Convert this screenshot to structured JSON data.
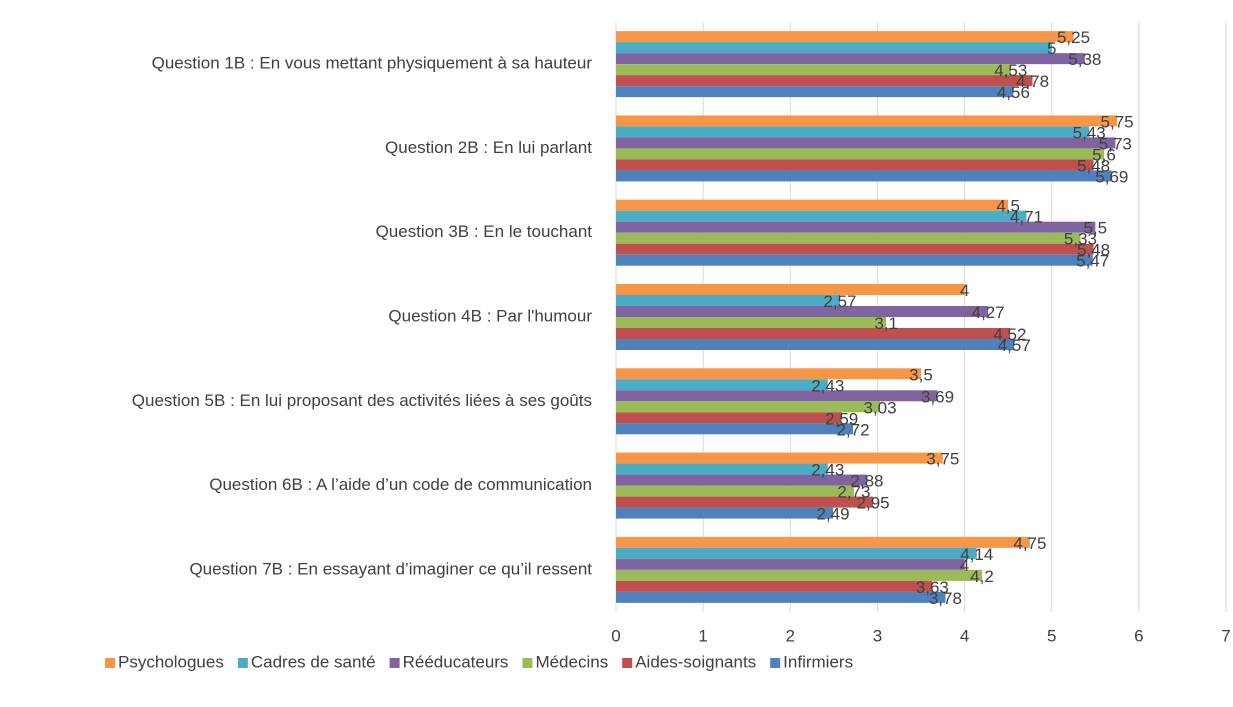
{
  "chart_data": {
    "type": "hbar",
    "categories": [
      "Question 1B : En vous mettant physiquement à sa hauteur",
      "Question 2B : En lui parlant",
      "Question 3B : En le touchant",
      "Question 4B : Par l'humour",
      "Question 5B : En lui proposant des activités liées à ses goûts",
      "Question 6B : A l’aide d’un code de communication",
      "Question 7B : En essayant d’imaginer ce qu’il ressent"
    ],
    "series": [
      {
        "name": "Psychologues",
        "color": "#f79646",
        "values": [
          5.25,
          5.75,
          4.5,
          4,
          3.5,
          3.75,
          4.75
        ],
        "value_labels": [
          "5,25",
          "5,75",
          "4,5",
          "4",
          "3,5",
          "3,75",
          "4,75"
        ]
      },
      {
        "name": "Cadres de santé",
        "color": "#4bacc6",
        "values": [
          5,
          5.43,
          4.71,
          2.57,
          2.43,
          2.43,
          4.14
        ],
        "value_labels": [
          "5",
          "5,43",
          "4,71",
          "2,57",
          "2,43",
          "2,43",
          "4,14"
        ]
      },
      {
        "name": "Rééducateurs",
        "color": "#8064a2",
        "values": [
          5.38,
          5.73,
          5.5,
          4.27,
          3.69,
          2.88,
          4
        ],
        "value_labels": [
          "5,38",
          "5,73",
          "5,5",
          "4,27",
          "3,69",
          "2,88",
          "4"
        ]
      },
      {
        "name": "Médecins",
        "color": "#9bbb59",
        "values": [
          4.53,
          5.6,
          5.33,
          3.1,
          3.03,
          2.73,
          4.2
        ],
        "value_labels": [
          "4,53",
          "5,6",
          "5,33",
          "3,1",
          "3,03",
          "2,73",
          "4,2"
        ]
      },
      {
        "name": "Aides-soignants",
        "color": "#c0504d",
        "values": [
          4.78,
          5.48,
          5.48,
          4.52,
          2.59,
          2.95,
          3.63
        ],
        "value_labels": [
          "4,78",
          "5,48",
          "5,48",
          "4,52",
          "2,59",
          "2,95",
          "3,63"
        ]
      },
      {
        "name": "Infirmiers",
        "color": "#4f81bd",
        "values": [
          4.56,
          5.69,
          5.47,
          4.57,
          2.72,
          2.49,
          3.78
        ],
        "value_labels": [
          "4,56",
          "5,69",
          "5,47",
          "4,57",
          "2,72",
          "2,49",
          "3,78"
        ]
      }
    ],
    "xlim": [
      0,
      7
    ],
    "xticks": [
      0,
      1,
      2,
      3,
      4,
      5,
      6,
      7
    ],
    "grid": true,
    "legend": "bottom"
  }
}
